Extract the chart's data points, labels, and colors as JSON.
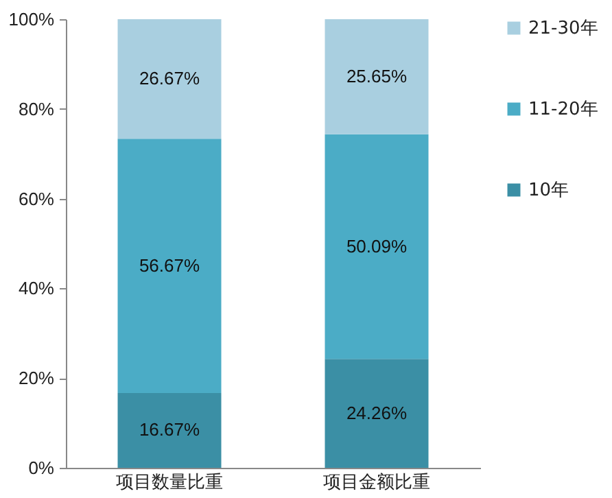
{
  "chart_data": {
    "type": "bar",
    "stacked": true,
    "categories": [
      "项目数量比重",
      "项目金额比重"
    ],
    "series": [
      {
        "name": "10年",
        "color": "#3b8fa5",
        "values": [
          16.67,
          24.26
        ],
        "value_labels": [
          "16.67%",
          "24.26%"
        ]
      },
      {
        "name": "11-20年",
        "color": "#4bacc6",
        "values": [
          56.67,
          50.09
        ],
        "value_labels": [
          "56.67%",
          "50.09%"
        ]
      },
      {
        "name": "21-30年",
        "color": "#a9cfe0",
        "values": [
          26.67,
          25.65
        ],
        "value_labels": [
          "26.67%",
          "25.65%"
        ]
      }
    ],
    "ylim": [
      0,
      100
    ],
    "yticks": [
      {
        "value": 0,
        "label": "0%"
      },
      {
        "value": 20,
        "label": "20%"
      },
      {
        "value": 40,
        "label": "40%"
      },
      {
        "value": 60,
        "label": "60%"
      },
      {
        "value": 80,
        "label": "80%"
      },
      {
        "value": 100,
        "label": "100%"
      }
    ],
    "grid": false,
    "legend": "right"
  }
}
